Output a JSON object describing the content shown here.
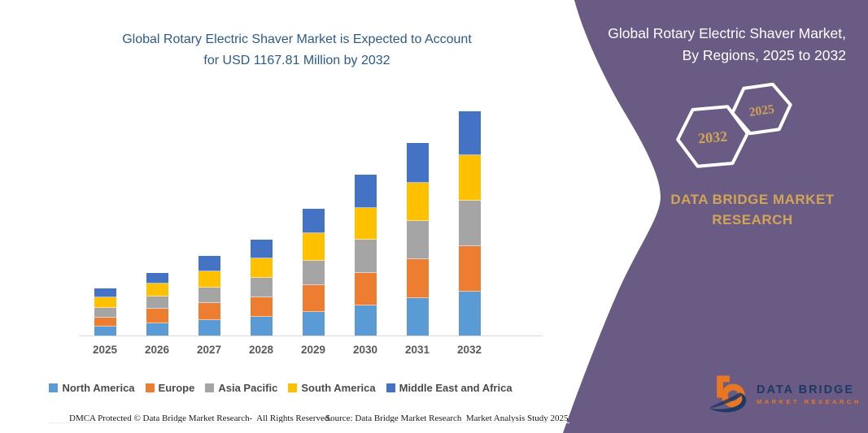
{
  "title": {
    "line1": "Global Rotary Electric Shaver Market is Expected to Account",
    "line2": "for USD 1167.81 Million by 2032"
  },
  "chart_data": {
    "type": "bar",
    "stacked": true,
    "title": "Global Rotary Electric Shaver Market is Expected to Account for USD 1167.81 Million by 2032",
    "unit": "USD Million",
    "categories": [
      "2025",
      "2026",
      "2027",
      "2028",
      "2029",
      "2030",
      "2031",
      "2032"
    ],
    "series": [
      {
        "name": "North America",
        "color": "#5B9BD5",
        "values": [
          46,
          62,
          80,
          97,
          121,
          155,
          194,
          229
        ]
      },
      {
        "name": "Europe",
        "color": "#ED7D31",
        "values": [
          47,
          78,
          88,
          104,
          141,
          173,
          204,
          237
        ]
      },
      {
        "name": "Asia Pacific",
        "color": "#A5A5A5",
        "values": [
          50,
          64,
          83,
          101,
          126,
          173,
          198,
          237
        ]
      },
      {
        "name": "South America",
        "color": "#FFC000",
        "values": [
          57,
          65,
          82,
          99,
          147,
          164,
          201,
          236
        ]
      },
      {
        "name": "Middle East and Africa",
        "color": "#4472C4",
        "values": [
          46,
          59,
          82,
          99,
          127,
          171,
          206,
          228.81
        ]
      }
    ],
    "totals": [
      246,
      328,
      415,
      500,
      662,
      836,
      1003,
      1167.81
    ],
    "ylim": [
      0,
      1200
    ],
    "grid": false,
    "legend_position": "bottom"
  },
  "panel": {
    "heading_line1": "Global Rotary Electric Shaver Market,",
    "heading_line2": "By Regions, 2025 to 2032",
    "hexagons": [
      {
        "label": "2032"
      },
      {
        "label": "2025"
      }
    ],
    "brand_line1": "DATA BRIDGE MARKET",
    "brand_line2": "RESEARCH",
    "colors": {
      "background": "#6a5b84",
      "accent_gold": "#d2a455",
      "border_white": "#ffffff"
    }
  },
  "footer": {
    "left": "DMCA Protected © Data Bridge Market Research-  All Rights Reserved.",
    "source": "Source: Data Bridge Market Research  Market Analysis Study 2025"
  },
  "logo": {
    "brand": "DATA BRIDGE",
    "sub": "MARKET RESEARCH",
    "colors": {
      "navy": "#1f3864",
      "orange": "#e87722"
    }
  },
  "colors": {
    "title_text": "#2d5a87",
    "axis_labels": "#595959",
    "baseline": "#d9d9d9"
  }
}
